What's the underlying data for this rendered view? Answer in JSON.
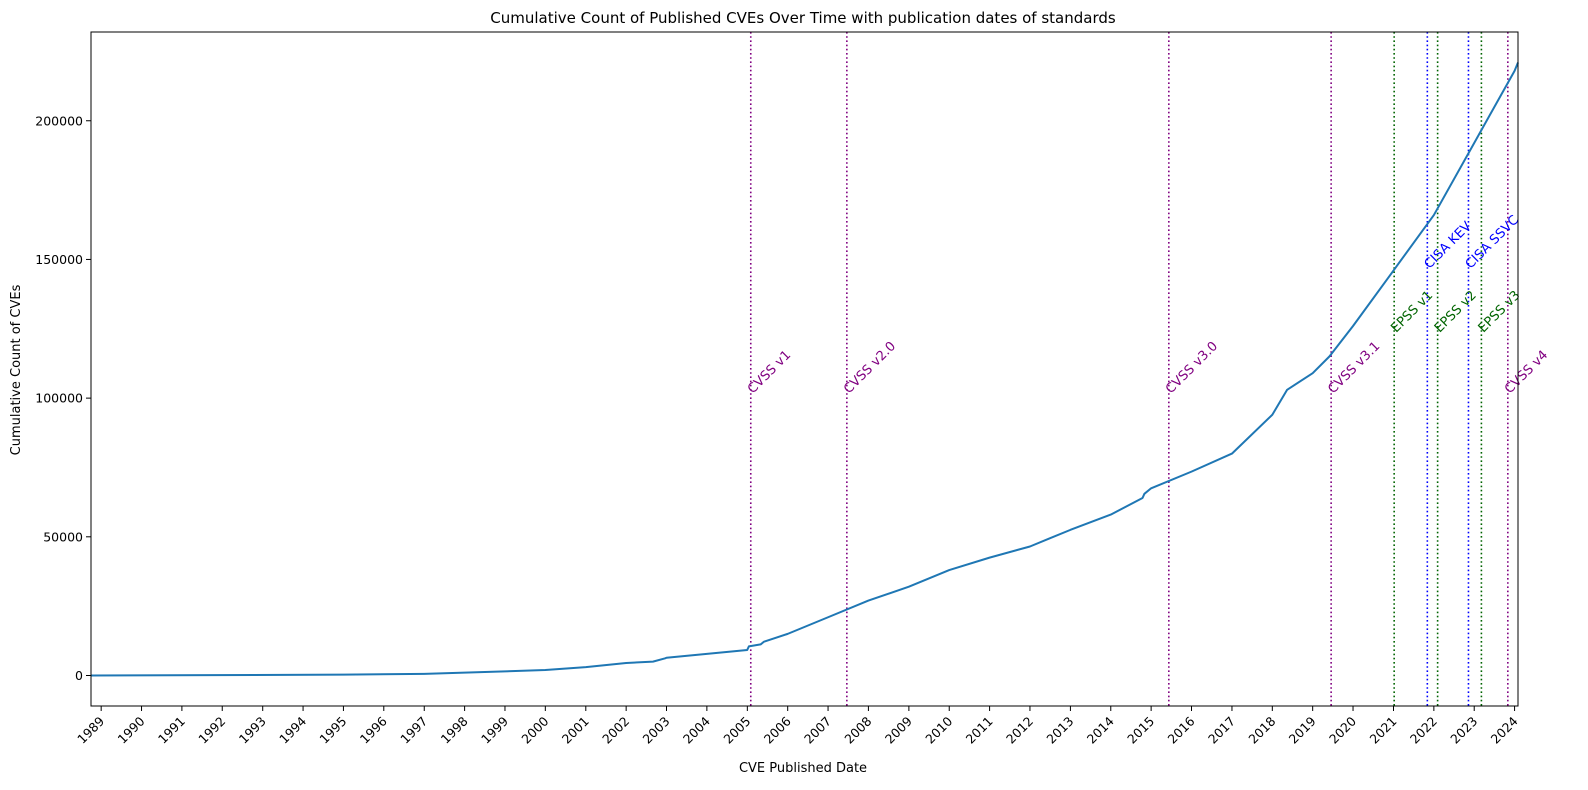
{
  "chart_data": {
    "type": "line",
    "title": "Cumulative Count of Published CVEs Over Time with publication dates of standards",
    "xlabel": "CVE Published Date",
    "ylabel": "Cumulative Count of CVEs",
    "xlim": [
      "1988-10-01",
      "2024-02-01"
    ],
    "ylim": [
      -11000,
      232000
    ],
    "grid": false,
    "x_ticks": [
      "1989",
      "1990",
      "1991",
      "1992",
      "1993",
      "1994",
      "1995",
      "1996",
      "1997",
      "1998",
      "1999",
      "2000",
      "2001",
      "2002",
      "2003",
      "2004",
      "2005",
      "2006",
      "2007",
      "2008",
      "2009",
      "2010",
      "2011",
      "2012",
      "2013",
      "2014",
      "2015",
      "2016",
      "2017",
      "2018",
      "2019",
      "2020",
      "2021",
      "2022",
      "2023",
      "2024"
    ],
    "y_ticks": [
      0,
      50000,
      100000,
      150000,
      200000
    ],
    "series": [
      {
        "color": "#1f77b4",
        "x": [
          "1988-10-01",
          "1995-01-01",
          "1997-01-01",
          "1999-01-01",
          "2000-01-01",
          "2001-01-01",
          "2002-01-01",
          "2002-09-01",
          "2002-12-20",
          "2003-01-01",
          "2004-01-01",
          "2004-12-31",
          "2005-01-15",
          "2005-05-01",
          "2005-06-01",
          "2006-01-01",
          "2007-01-01",
          "2008-01-01",
          "2009-01-01",
          "2010-01-01",
          "2011-01-01",
          "2012-01-01",
          "2012-07-01",
          "2013-01-01",
          "2014-01-01",
          "2014-10-15",
          "2014-11-01",
          "2015-01-01",
          "2016-01-01",
          "2017-01-01",
          "2018-01-01",
          "2018-05-15",
          "2019-01-01",
          "2019-06-01",
          "2020-01-01",
          "2021-01-01",
          "2022-01-01",
          "2023-01-01",
          "2024-01-01",
          "2024-02-01"
        ],
        "y": [
          0,
          300,
          600,
          1500,
          2000,
          3000,
          4500,
          5000,
          6200,
          6400,
          7800,
          9200,
          10500,
          11200,
          12200,
          15000,
          21000,
          27000,
          32000,
          38000,
          42500,
          46500,
          49500,
          52500,
          58000,
          64000,
          65500,
          67500,
          73500,
          80000,
          94000,
          103000,
          109000,
          115000,
          126000,
          146000,
          166000,
          192000,
          218000,
          221000
        ]
      }
    ],
    "annotations": [
      {
        "label": "CVSS v1",
        "date": "2005-02-01",
        "color": "#800080",
        "label_y": 100000
      },
      {
        "label": "CVSS v2.0",
        "date": "2007-06-20",
        "color": "#800080",
        "label_y": 100000
      },
      {
        "label": "CVSS v3.0",
        "date": "2015-06-10",
        "color": "#800080",
        "label_y": 100000
      },
      {
        "label": "CVSS v3.1",
        "date": "2019-06-17",
        "color": "#800080",
        "label_y": 100000
      },
      {
        "label": "EPSS v1",
        "date": "2021-01-07",
        "color": "#006400",
        "label_y": 122000
      },
      {
        "label": "CISA KEV",
        "date": "2021-11-03",
        "color": "#0000ff",
        "label_y": 145000
      },
      {
        "label": "EPSS v2",
        "date": "2022-02-04",
        "color": "#006400",
        "label_y": 122000
      },
      {
        "label": "CISA SSVC",
        "date": "2022-11-10",
        "color": "#0000ff",
        "label_y": 145000
      },
      {
        "label": "EPSS v3",
        "date": "2023-03-07",
        "color": "#006400",
        "label_y": 122000
      },
      {
        "label": "CVSS v4",
        "date": "2023-11-01",
        "color": "#800080",
        "label_y": 100000
      }
    ]
  }
}
